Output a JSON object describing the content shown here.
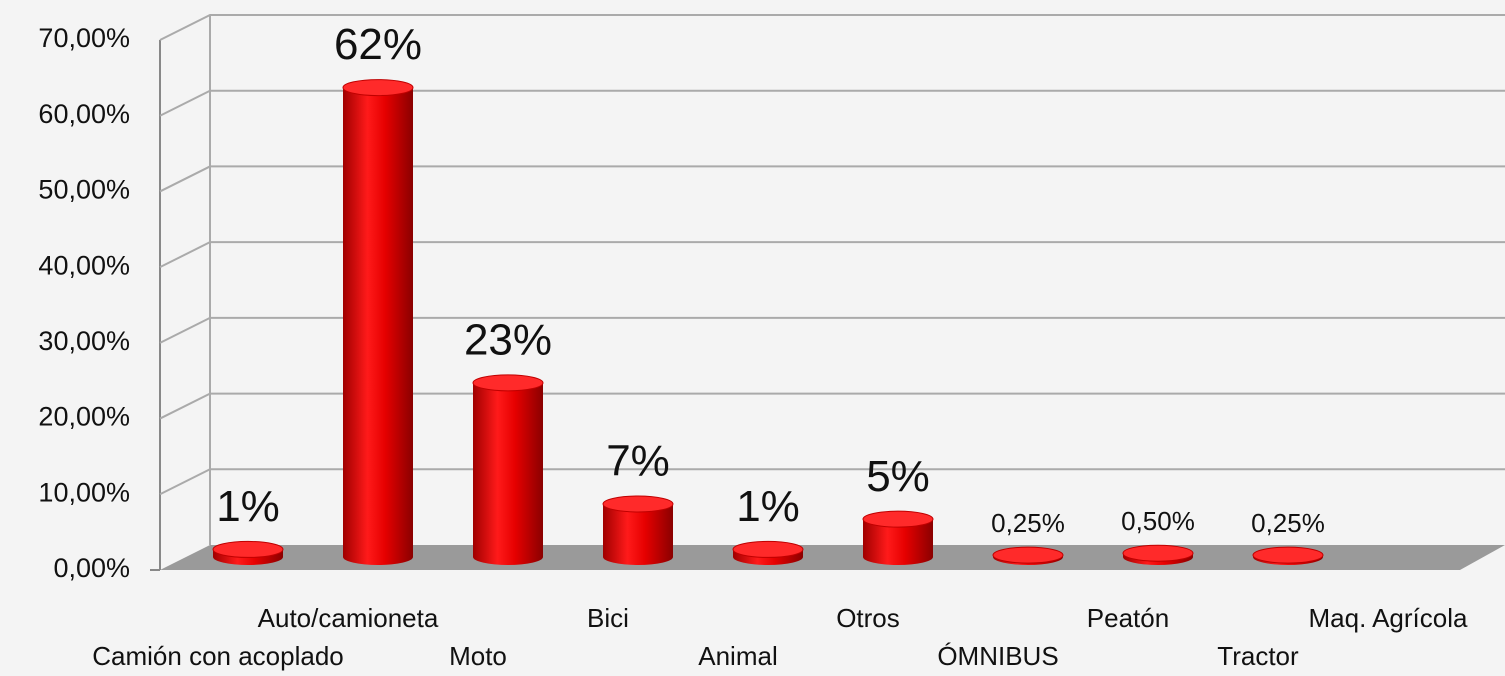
{
  "chart_data": {
    "type": "bar",
    "categories": [
      "Camión con acoplado",
      "Auto/camioneta",
      "Moto",
      "Bici",
      "Animal",
      "Otros",
      "ÓMNIBUS",
      "Peatón",
      "Tractor",
      "Maq. Agrícola"
    ],
    "values": [
      1,
      62,
      23,
      7,
      1,
      5,
      0.25,
      0.5,
      0.25,
      null
    ],
    "value_labels": [
      "1%",
      "62%",
      "23%",
      "7%",
      "1%",
      "5%",
      "0,25%",
      "0,50%",
      "0,25%",
      null
    ],
    "color": "#e80000",
    "ylim": [
      0,
      70
    ],
    "yticks": [
      {
        "value": 0,
        "label": "0,00%"
      },
      {
        "value": 10,
        "label": "10,00%"
      },
      {
        "value": 20,
        "label": "20,00%"
      },
      {
        "value": 30,
        "label": "30,00%"
      },
      {
        "value": 40,
        "label": "40,00%"
      },
      {
        "value": 50,
        "label": "50,00%"
      },
      {
        "value": 60,
        "label": "60,00%"
      },
      {
        "value": 70,
        "label": "70,00%"
      }
    ],
    "grid": true
  }
}
